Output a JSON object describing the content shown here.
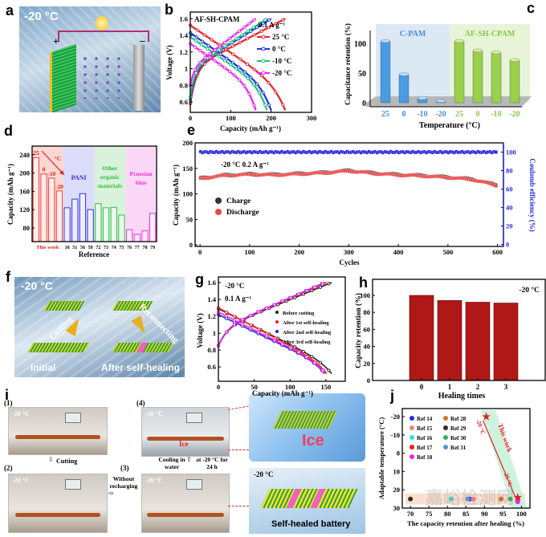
{
  "panels": {
    "a": {
      "label": "a",
      "temp": "-20 °C",
      "plus": "+",
      "minus": "−"
    },
    "b": {
      "label": "b"
    },
    "c": {
      "label": "c"
    },
    "d": {
      "label": "d"
    },
    "e": {
      "label": "e"
    },
    "f": {
      "label": "f",
      "temp": "-20 °C",
      "cutting": "Cutting",
      "reconnecting": "Reconnecting",
      "initial": "Initial",
      "after": "After self-healing"
    },
    "g": {
      "label": "g"
    },
    "h": {
      "label": "h"
    },
    "i": {
      "label": "i",
      "step1": "(1)",
      "step2": "(2)",
      "step3": "(3)",
      "step4": "(4)",
      "temp": "-20 °C",
      "cutting": "Cutting",
      "without": "Without recharging",
      "cooling": "Cooling in water",
      "at": "at -20 °C for 24 h",
      "ice": "Ice",
      "ice_big": "Ice",
      "healed_temp": "-20 °C",
      "healed": "Self-healed battery"
    },
    "j": {
      "label": "j"
    }
  },
  "colors": {
    "red": "#e8202a",
    "blue": "#2030e0",
    "green": "#20c080",
    "magenta": "#f020f0"
  },
  "watermark": "嘉峪检测网",
  "chart_data": [
    {
      "panel": "b",
      "type": "line",
      "title": "AF-SH-CPAM",
      "annotation": "0.1 A g⁻¹",
      "xlabel": "Capacity (mAh g⁻¹)",
      "ylabel": "Voltage (V)",
      "xlim": [
        0,
        300
      ],
      "ylim": [
        0.475,
        1.68
      ],
      "xticks": [
        0,
        100,
        200,
        300
      ],
      "yticks": [
        0.6,
        0.8,
        1.0,
        1.2,
        1.4,
        1.6
      ],
      "series": [
        {
          "name": "25 °C",
          "color": "#e8202a",
          "capacity": 235,
          "discharge_start_v": 1.52,
          "charge_start_v": 0.58
        },
        {
          "name": "0 °C",
          "color": "#2030e0",
          "capacity": 200,
          "discharge_start_v": 1.43,
          "charge_start_v": 0.62
        },
        {
          "name": "-10 °C",
          "color": "#20c080",
          "capacity": 190,
          "discharge_start_v": 1.38,
          "charge_start_v": 0.66
        },
        {
          "name": "-20 °C",
          "color": "#f020f0",
          "capacity": 162,
          "discharge_start_v": 1.3,
          "charge_start_v": 0.8
        }
      ]
    },
    {
      "panel": "c",
      "type": "bar",
      "xlabel": "Temperature (°C)",
      "ylabel": "Capacitance retention (%)",
      "ylim": [
        0,
        120
      ],
      "yticks": [
        0,
        50,
        100
      ],
      "groups": [
        {
          "name": "C-PAM",
          "color": "#4a9be0",
          "categories": [
            "25",
            "0",
            "-10",
            "-20"
          ],
          "values": [
            104,
            48,
            8,
            3
          ]
        },
        {
          "name": "AF-SH-CPAM",
          "color": "#9ad04a",
          "categories": [
            "25",
            "0",
            "-10",
            "-20"
          ],
          "values": [
            104,
            88,
            85,
            72
          ]
        }
      ]
    },
    {
      "panel": "d",
      "type": "bar",
      "xlabel": "Reference",
      "ylabel": "Capacity (mAh g⁻¹)",
      "ylim": [
        50,
        259
      ],
      "yticks": [
        80,
        120,
        160,
        200,
        240
      ],
      "unit_label": "°C",
      "groups": [
        {
          "name": "This work",
          "color": "#f04040",
          "bg": "#fbd8d2",
          "categories": [
            "25",
            "0",
            "-10",
            "-20"
          ],
          "values": [
            234,
            198,
            189,
            161
          ]
        },
        {
          "name": "PANI",
          "color": "#3030e0",
          "bg": "#dcdcfb",
          "categories": [
            "18",
            "51",
            "56",
            "59"
          ],
          "values": [
            124,
            143,
            155,
            120
          ]
        },
        {
          "name": "Other organic materials",
          "name_lines": [
            "Other",
            "organic",
            "materials"
          ],
          "color": "#30c040",
          "bg": "#d8f2dc",
          "categories": [
            "72",
            "73",
            "74",
            "75"
          ],
          "values": [
            133,
            124,
            125,
            108
          ]
        },
        {
          "name": "Prussian blue",
          "name_lines": [
            "Prussian",
            "blue"
          ],
          "color": "#f030e0",
          "bg": "#fbd8f6",
          "categories": [
            "76",
            "77",
            "78",
            "79"
          ],
          "values": [
            76,
            66,
            74,
            112
          ]
        }
      ]
    },
    {
      "panel": "e",
      "type": "scatter",
      "annotation": "-20 °C  0.2 A g⁻¹",
      "xlabel": "Cycles",
      "ylabel": "Capacity (mAh g⁻¹)",
      "y2label": "Coulomb efficiency (%)",
      "xlim": [
        -10,
        612
      ],
      "ylim": [
        -3,
        200
      ],
      "y2lim": [
        -2,
        110
      ],
      "xticks": [
        0,
        100,
        200,
        300,
        400,
        500,
        600
      ],
      "yticks": [
        0,
        50,
        100,
        150,
        200
      ],
      "y2ticks": [
        0,
        20,
        40,
        60,
        80,
        100
      ],
      "x": [
        0,
        50,
        100,
        150,
        200,
        250,
        300,
        350,
        400,
        450,
        500,
        550,
        600
      ],
      "series": [
        {
          "name": "Charge",
          "color": "#333333",
          "axis": "left",
          "values": [
            131,
            137,
            139,
            138,
            140,
            142,
            146,
            141,
            138,
            136,
            133,
            129,
            117
          ]
        },
        {
          "name": "Discharge",
          "color": "#e84848",
          "axis": "left",
          "values": [
            130,
            136,
            138,
            137,
            139,
            141,
            145,
            140,
            137,
            135,
            132,
            128,
            116
          ]
        },
        {
          "name": "Coulomb efficiency",
          "color": "#2828e0",
          "axis": "right",
          "values": [
            100,
            100,
            100,
            100,
            100,
            100,
            100,
            100,
            100,
            100,
            100,
            100,
            100
          ]
        }
      ]
    },
    {
      "panel": "g",
      "type": "line",
      "annotation1": "-20 °C",
      "annotation2": "0.1 A g⁻¹",
      "xlabel": "Capacity (mAh g⁻¹)",
      "ylabel": "Voltage (V)",
      "xlim": [
        0,
        177
      ],
      "ylim": [
        0.43,
        1.667
      ],
      "xticks": [
        0,
        50,
        100,
        150
      ],
      "yticks": [
        0.6,
        0.8,
        1.0,
        1.2,
        1.4,
        1.6
      ],
      "series": [
        {
          "name": "Before cutting",
          "color": "#222222",
          "capacity": 158,
          "discharge_start_v": 1.29
        },
        {
          "name": "After 1st self-healing",
          "color": "#f02020",
          "capacity": 151,
          "discharge_start_v": 1.3
        },
        {
          "name": "After 2nd self-healing",
          "color": "#2020f0",
          "capacity": 148,
          "discharge_start_v": 1.22
        },
        {
          "name": "After 3rd self-healing",
          "color": "#f020f0",
          "capacity": 149,
          "discharge_start_v": 1.25
        }
      ]
    },
    {
      "panel": "h",
      "type": "bar",
      "annotation": "-20 °C",
      "xlabel": "Healing times",
      "ylabel": "Capacity retention (%)",
      "ylim": [
        0,
        119
      ],
      "yticks": [
        0,
        20,
        40,
        60,
        80,
        100
      ],
      "categories": [
        "0",
        "1",
        "2",
        "3"
      ],
      "values": [
        100,
        94,
        92,
        91
      ],
      "color": "#b01818"
    },
    {
      "panel": "j",
      "type": "scatter",
      "xlabel": "The capacity retention after healing (%)",
      "ylabel": "Adaptable temperature (°C)",
      "xlim": [
        67.8,
        102.3
      ],
      "ylim": [
        -24.4,
        30
      ],
      "y_reversed": true,
      "xticks": [
        70,
        75,
        80,
        85,
        90,
        95,
        100
      ],
      "yticks": [
        -20,
        -10,
        0,
        10,
        20,
        30
      ],
      "series": [
        {
          "name": "Ref 14",
          "color": "#2030e0",
          "x": 86,
          "y": 25
        },
        {
          "name": "Ref 15",
          "color": "#f08080",
          "x": 87,
          "y": 25
        },
        {
          "name": "Ref 16",
          "color": "#30e0e0",
          "x": 81,
          "y": 25
        },
        {
          "name": "Ref 17",
          "color": "#f02020",
          "x": 99,
          "y": 25
        },
        {
          "name": "Ref 18",
          "color": "#f020f0",
          "x": 99,
          "y": 26.5
        },
        {
          "name": "Ref 28",
          "color": "#d07820",
          "x": 94.5,
          "y": 25
        },
        {
          "name": "Ref 29",
          "color": "#3a2a20",
          "x": 70,
          "y": 25
        },
        {
          "name": "Ref 30",
          "color": "#30b060",
          "x": 97,
          "y": 25
        },
        {
          "name": "Ref 31",
          "color": "#6090d0",
          "x": 85.5,
          "y": 25
        }
      ],
      "this_work": {
        "label": "This work",
        "points": [
          {
            "x": 90.5,
            "y": -20,
            "label": "-20 °C"
          },
          {
            "x": 99,
            "y": 24,
            "label": "25 °C"
          }
        ]
      }
    }
  ]
}
